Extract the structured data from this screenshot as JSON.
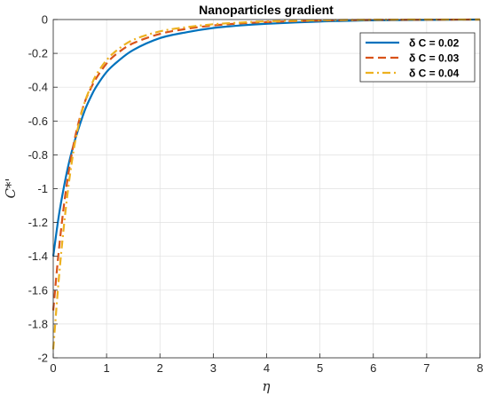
{
  "chart_data": {
    "type": "line",
    "title": "Nanoparticles gradient",
    "xlabel": "η",
    "ylabel": "C*'",
    "xlim": [
      0,
      8
    ],
    "ylim": [
      -2,
      0
    ],
    "x_ticks": [
      "0",
      "1",
      "2",
      "3",
      "4",
      "5",
      "6",
      "7",
      "8"
    ],
    "y_ticks": [
      "0",
      "-0.2",
      "-0.4",
      "-0.6",
      "-0.8",
      "-1",
      "-1.2",
      "-1.4",
      "-1.6",
      "-1.8",
      "-2"
    ],
    "grid": true,
    "legend_position": "top-right",
    "series": [
      {
        "name": "δ C = 0.02",
        "color": "#0072BD",
        "style": "solid",
        "x": [
          0,
          0.1,
          0.2,
          0.3,
          0.4,
          0.5,
          0.6,
          0.7,
          0.8,
          1,
          1.2,
          1.5,
          2,
          2.5,
          3,
          3.5,
          4,
          5,
          6,
          7,
          8
        ],
        "y": [
          -1.4,
          -1.17,
          -0.99,
          -0.84,
          -0.72,
          -0.62,
          -0.53,
          -0.46,
          -0.4,
          -0.31,
          -0.25,
          -0.18,
          -0.11,
          -0.075,
          -0.05,
          -0.035,
          -0.025,
          -0.012,
          -0.005,
          -0.002,
          0
        ]
      },
      {
        "name": "δ C = 0.03",
        "color": "#D95319",
        "style": "dashed",
        "x": [
          0,
          0.1,
          0.2,
          0.3,
          0.4,
          0.5,
          0.6,
          0.7,
          0.8,
          1,
          1.2,
          1.5,
          2,
          2.5,
          3,
          3.5,
          4,
          5,
          6,
          7,
          8
        ],
        "y": [
          -1.72,
          -1.38,
          -1.1,
          -0.88,
          -0.71,
          -0.58,
          -0.48,
          -0.41,
          -0.35,
          -0.26,
          -0.2,
          -0.14,
          -0.085,
          -0.055,
          -0.035,
          -0.023,
          -0.015,
          -0.006,
          -0.002,
          -0.001,
          0
        ]
      },
      {
        "name": "δ C = 0.04",
        "color": "#EDB120",
        "style": "dashdot",
        "x": [
          0,
          0.1,
          0.2,
          0.3,
          0.4,
          0.5,
          0.6,
          0.7,
          0.8,
          1,
          1.2,
          1.5,
          2,
          2.5,
          3,
          3.5,
          4,
          5,
          6,
          7,
          8
        ],
        "y": [
          -1.95,
          -1.55,
          -1.22,
          -0.95,
          -0.74,
          -0.59,
          -0.48,
          -0.4,
          -0.33,
          -0.24,
          -0.18,
          -0.12,
          -0.07,
          -0.045,
          -0.028,
          -0.018,
          -0.011,
          -0.004,
          -0.001,
          0,
          0
        ]
      }
    ]
  }
}
